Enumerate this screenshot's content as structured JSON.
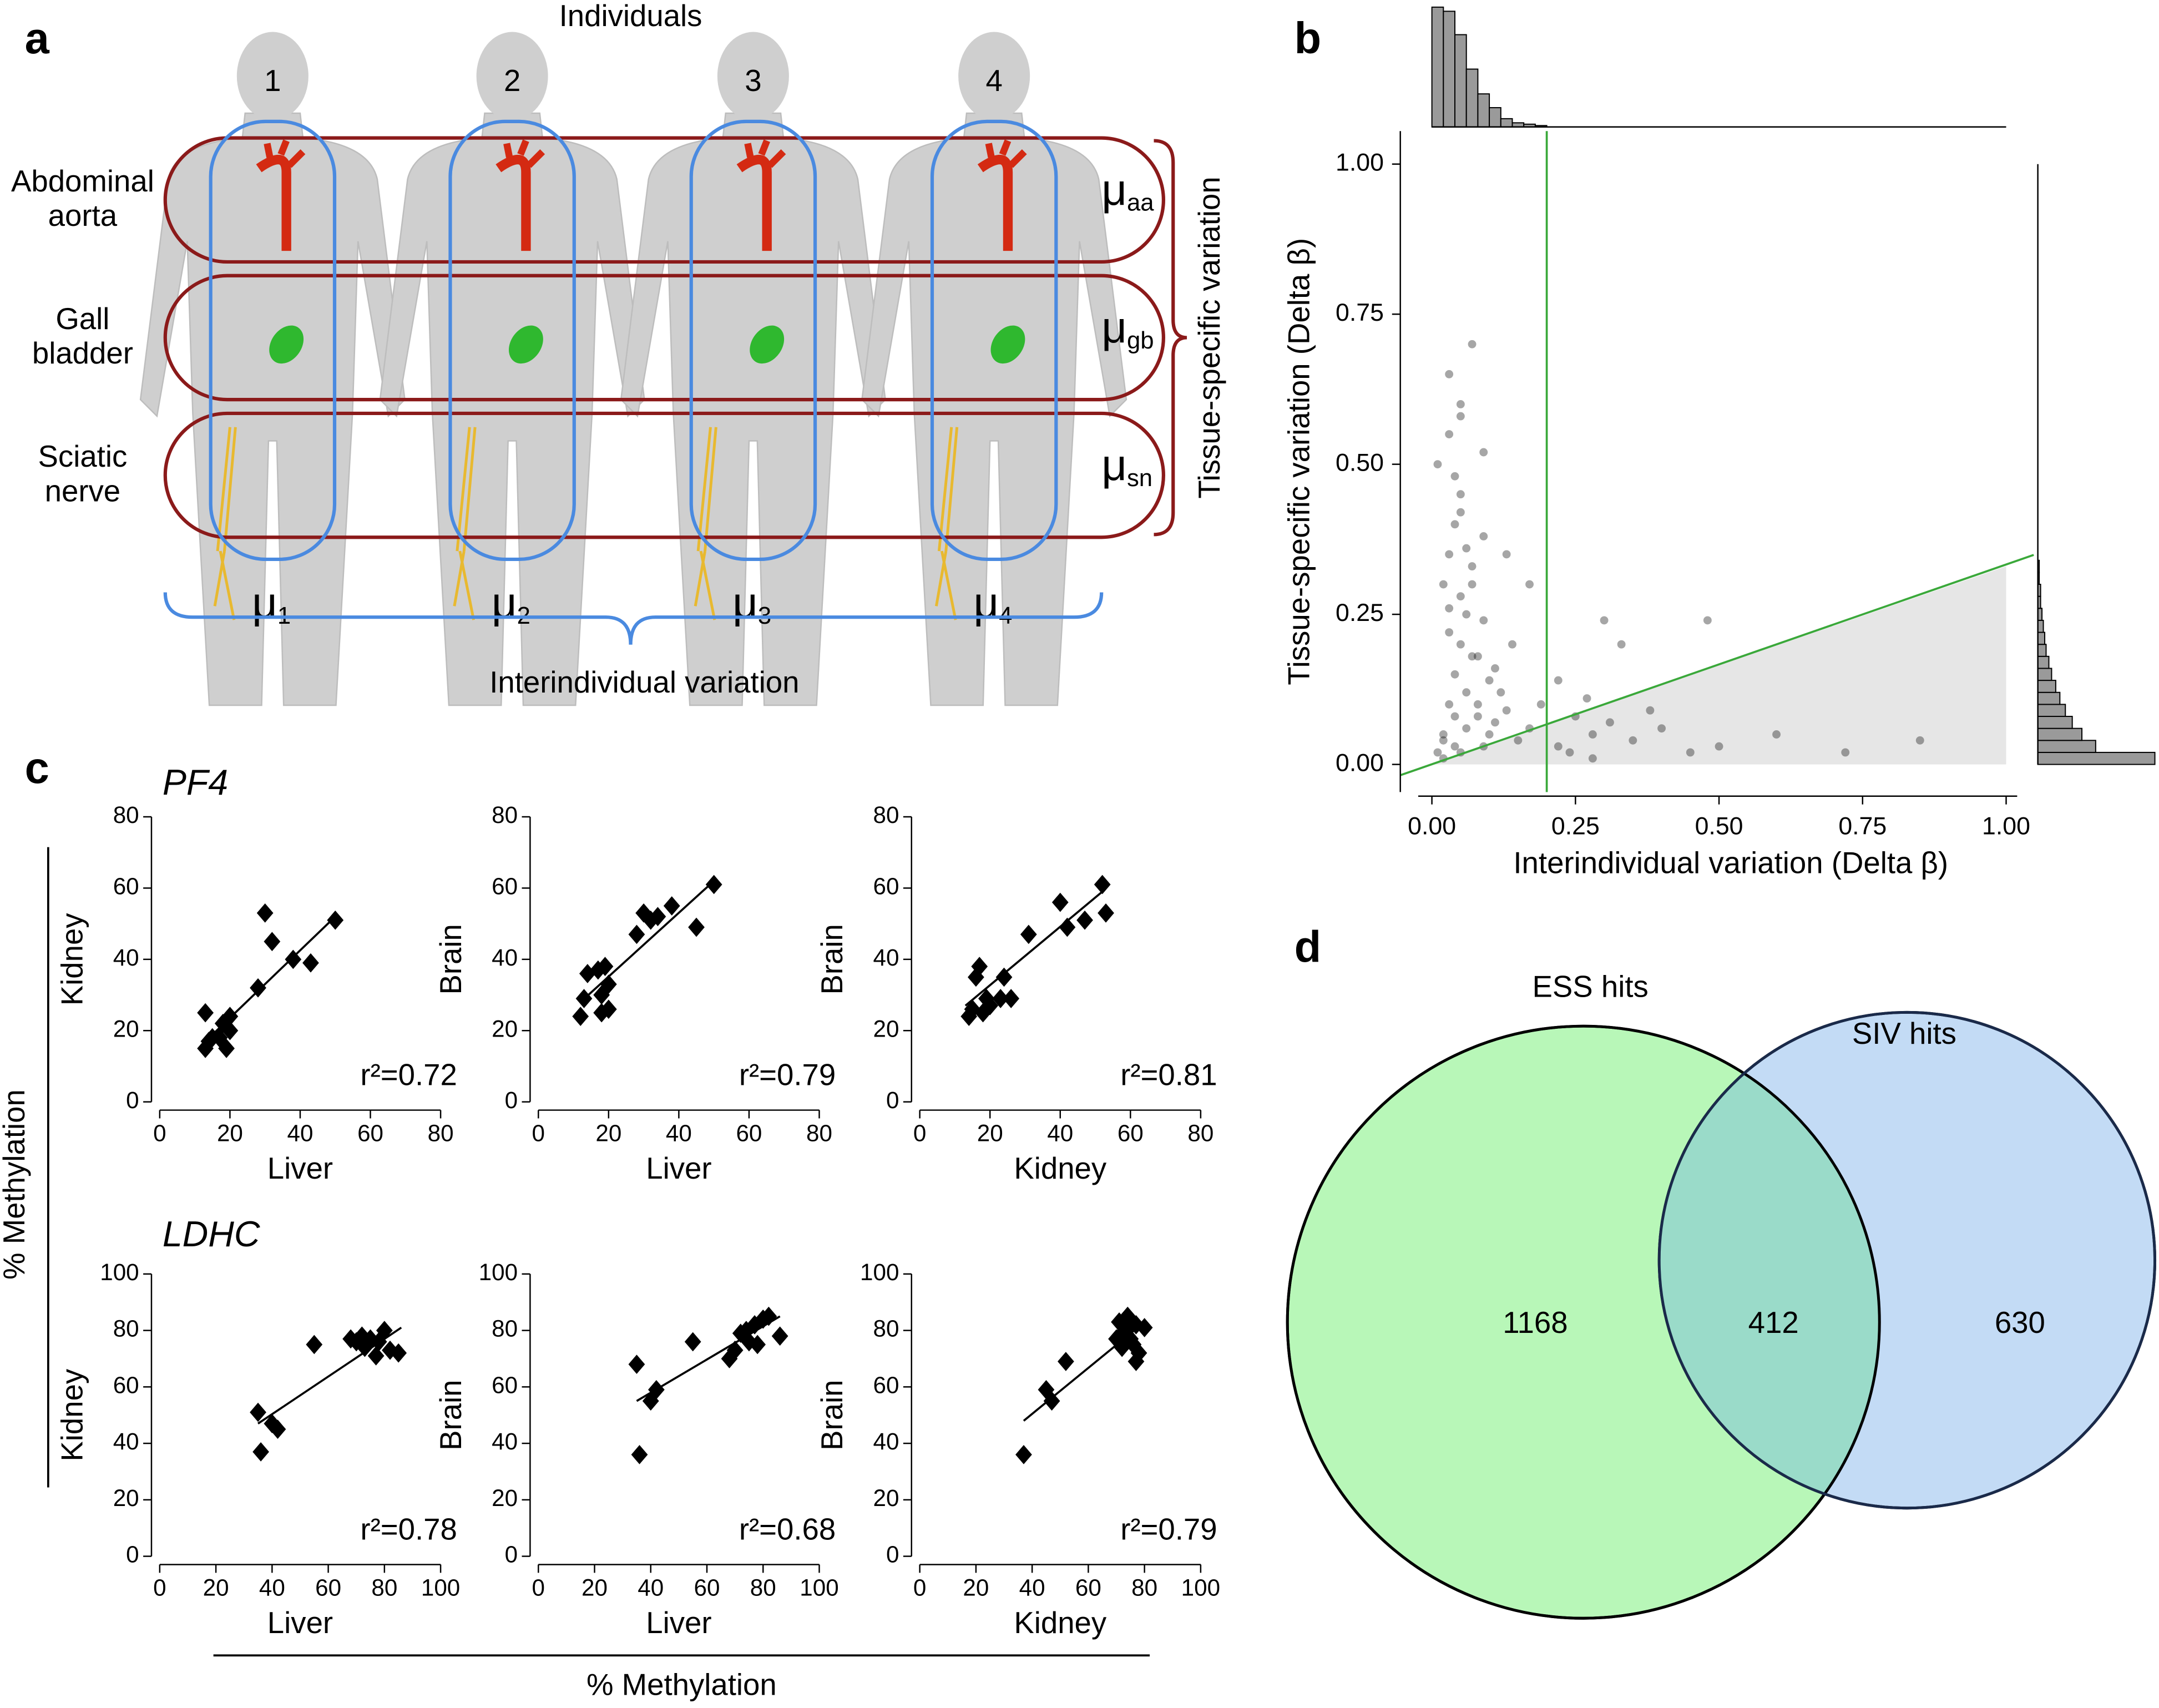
{
  "panel_labels": [
    "a",
    "b",
    "c",
    "d"
  ],
  "diagram": {
    "title": "Individuals",
    "individuals": [
      {
        "number": "1",
        "mu": {
          "symbol": "μ",
          "sub": "1"
        }
      },
      {
        "number": "2",
        "mu": {
          "symbol": "μ",
          "sub": "2"
        }
      },
      {
        "number": "3",
        "mu": {
          "symbol": "μ",
          "sub": "3"
        }
      },
      {
        "number": "4",
        "mu": {
          "symbol": "μ",
          "sub": "4"
        }
      }
    ],
    "tissues": [
      {
        "label": [
          "Abdominal",
          "aorta"
        ],
        "mu": {
          "symbol": "μ",
          "sub": "aa"
        }
      },
      {
        "label": [
          "Gall",
          "bladder"
        ],
        "mu": {
          "symbol": "μ",
          "sub": "gb"
        }
      },
      {
        "label": [
          "Sciatic",
          "nerve"
        ],
        "mu": {
          "symbol": "μ",
          "sub": "sn"
        }
      }
    ],
    "tissue_brace_label": "Tissue-specific variation",
    "individual_brace_label": "Interindividual variation"
  },
  "row_titles": [
    "PF4",
    "LDHC"
  ],
  "shared_labels": {
    "y": "% Methylation",
    "x": "% Methylation"
  },
  "chart_data": [
    {
      "type": "density_scatter",
      "xlabel": "Interindividual variation (Delta β)",
      "ylabel": "Tissue-specific variation (Delta β)",
      "xlim": [
        -0.055,
        1.048
      ],
      "ylim": [
        -0.046,
        1.055
      ],
      "xticks": [
        {
          "value": 0,
          "label": "0.00"
        },
        {
          "value": 0.25,
          "label": "0.25"
        },
        {
          "value": 0.5,
          "label": "0.50"
        },
        {
          "value": 0.75,
          "label": "0.75"
        },
        {
          "value": 1,
          "label": "1.00"
        }
      ],
      "yticks": [
        {
          "value": 0,
          "label": "0.00"
        },
        {
          "value": 0.25,
          "label": "0.25"
        },
        {
          "value": 0.5,
          "label": "0.50"
        },
        {
          "value": 0.75,
          "label": "0.75"
        },
        {
          "value": 1,
          "label": "1.00"
        }
      ],
      "color": "#000000",
      "line_color": "#3aa83a",
      "shade_color": "#e6e6e6",
      "hist_color": "#9a9a9a",
      "x": [
        0.01,
        0.02,
        0.03,
        0.04,
        0.05,
        0.06,
        0.02,
        0.03,
        0.04,
        0.05,
        0.01,
        0.03,
        0.05,
        0.07,
        0.02,
        0.04,
        0.06,
        0.08,
        0.03,
        0.05,
        0.07,
        0.09,
        0.02,
        0.04,
        0.06,
        0.08,
        0.1,
        0.03,
        0.05,
        0.07,
        0.09,
        0.11,
        0.04,
        0.06,
        0.08,
        0.1,
        0.12,
        0.14,
        0.05,
        0.07,
        0.09,
        0.11,
        0.13,
        0.15,
        0.17,
        0.19,
        0.22,
        0.25,
        0.28,
        0.31,
        0.35,
        0.4,
        0.45,
        0.22,
        0.27,
        0.33,
        0.38,
        0.5,
        0.6,
        0.72,
        0.85,
        0.3,
        0.48,
        0.24,
        0.17,
        0.13,
        0.09,
        0.03,
        0.05,
        0.28
      ],
      "values": [
        0.02,
        0.05,
        0.1,
        0.15,
        0.2,
        0.25,
        0.3,
        0.35,
        0.4,
        0.45,
        0.5,
        0.55,
        0.6,
        0.7,
        0.04,
        0.08,
        0.12,
        0.18,
        0.22,
        0.28,
        0.33,
        0.38,
        0.01,
        0.03,
        0.06,
        0.1,
        0.14,
        0.26,
        0.42,
        0.3,
        0.24,
        0.16,
        0.48,
        0.36,
        0.08,
        0.05,
        0.12,
        0.2,
        0.02,
        0.18,
        0.03,
        0.07,
        0.09,
        0.04,
        0.06,
        0.1,
        0.03,
        0.08,
        0.05,
        0.07,
        0.04,
        0.06,
        0.02,
        0.14,
        0.11,
        0.2,
        0.09,
        0.03,
        0.05,
        0.02,
        0.04,
        0.24,
        0.24,
        0.02,
        0.3,
        0.35,
        0.52,
        0.65,
        0.58,
        0.01
      ],
      "vline": {
        "x": 0.2
      },
      "diagonal": {
        "x": [
          -0.055,
          1.048
        ],
        "y": [
          -0.018,
          0.349
        ]
      },
      "shaded_region": {
        "x": [
          0,
          1,
          1
        ],
        "y": [
          0,
          0,
          0.33
        ]
      },
      "histogram_top": {
        "bins": [
          0,
          0.02,
          0.04,
          0.06,
          0.08,
          0.1,
          0.12,
          0.14,
          0.16,
          0.18,
          0.2
        ],
        "counts": [
          87,
          84,
          67,
          42,
          24,
          14,
          6,
          3,
          2,
          1
        ]
      },
      "histogram_right": {
        "bins": [
          0,
          0.02,
          0.04,
          0.06,
          0.08,
          0.1,
          0.12,
          0.14,
          0.16,
          0.18,
          0.2,
          0.22,
          0.24,
          0.26,
          0.28,
          0.3,
          0.32,
          0.34
        ],
        "counts": [
          85,
          42,
          32,
          25,
          20,
          16,
          13,
          10,
          8,
          6,
          5,
          4,
          3,
          2,
          2,
          1,
          1
        ]
      }
    },
    {
      "type": "scatter",
      "xlabel": "Liver",
      "ylabel": "Kidney",
      "annotation": "r²=0.72",
      "xlim": [
        0,
        80
      ],
      "ylim": [
        0,
        80
      ],
      "xticks": [
        0,
        20,
        40,
        60,
        80
      ],
      "yticks": [
        0,
        20,
        40,
        60,
        80
      ],
      "x": [
        13,
        13,
        14,
        15,
        17,
        18,
        19,
        20,
        20,
        28,
        30,
        32,
        38,
        43,
        50
      ],
      "values": [
        25,
        15,
        17,
        18,
        18,
        22,
        15,
        24,
        20,
        32,
        53,
        45,
        40,
        39,
        51
      ],
      "fit": {
        "x": [
          12,
          50
        ],
        "y": [
          16,
          52
        ]
      }
    },
    {
      "type": "scatter",
      "xlabel": "Liver",
      "ylabel": "Brain",
      "annotation": "r²=0.79",
      "xlim": [
        0,
        80
      ],
      "ylim": [
        0,
        80
      ],
      "xticks": [
        0,
        20,
        40,
        60,
        80
      ],
      "yticks": [
        0,
        20,
        40,
        60,
        80
      ],
      "x": [
        12,
        13,
        14,
        17,
        18,
        18,
        19,
        20,
        20,
        28,
        30,
        32,
        34,
        38,
        45,
        50
      ],
      "values": [
        24,
        29,
        36,
        37,
        25,
        30,
        38,
        26,
        33,
        47,
        53,
        51,
        52,
        55,
        49,
        61
      ],
      "fit": {
        "x": [
          12,
          50
        ],
        "y": [
          28,
          62
        ]
      }
    },
    {
      "type": "scatter",
      "xlabel": "Kidney",
      "ylabel": "Brain",
      "annotation": "r²=0.81",
      "xlim": [
        0,
        80
      ],
      "ylim": [
        0,
        80
      ],
      "xticks": [
        0,
        20,
        40,
        60,
        80
      ],
      "yticks": [
        0,
        20,
        40,
        60,
        80
      ],
      "x": [
        14,
        15,
        16,
        17,
        18,
        19,
        20,
        23,
        24,
        26,
        31,
        40,
        42,
        47,
        52,
        53
      ],
      "values": [
        24,
        26,
        35,
        38,
        25,
        29,
        27,
        29,
        35,
        29,
        47,
        56,
        49,
        51,
        61,
        53
      ],
      "fit": {
        "x": [
          13,
          52
        ],
        "y": [
          27,
          59
        ]
      }
    },
    {
      "type": "scatter",
      "xlabel": "Liver",
      "ylabel": "Kidney",
      "annotation": "r²=0.78",
      "xlim": [
        0,
        100
      ],
      "ylim": [
        0,
        100
      ],
      "xticks": [
        0,
        20,
        40,
        60,
        80,
        100
      ],
      "yticks": [
        0,
        20,
        40,
        60,
        80,
        100
      ],
      "x": [
        35,
        36,
        40,
        42,
        55,
        68,
        70,
        72,
        73,
        75,
        77,
        78,
        80,
        82,
        85
      ],
      "values": [
        51,
        37,
        47,
        45,
        75,
        77,
        76,
        78,
        74,
        77,
        71,
        76,
        80,
        73,
        72
      ],
      "fit": {
        "x": [
          35,
          86
        ],
        "y": [
          47,
          81
        ]
      }
    },
    {
      "type": "scatter",
      "xlabel": "Liver",
      "ylabel": "Brain",
      "annotation": "r²=0.68",
      "xlim": [
        0,
        100
      ],
      "ylim": [
        0,
        100
      ],
      "xticks": [
        0,
        20,
        40,
        60,
        80,
        100
      ],
      "yticks": [
        0,
        20,
        40,
        60,
        80,
        100
      ],
      "x": [
        35,
        36,
        40,
        42,
        55,
        68,
        70,
        72,
        74,
        75,
        77,
        78,
        80,
        82,
        86
      ],
      "values": [
        68,
        36,
        55,
        59,
        76,
        70,
        73,
        79,
        80,
        76,
        82,
        75,
        84,
        85,
        78
      ],
      "fit": {
        "x": [
          35,
          86
        ],
        "y": [
          55,
          85
        ]
      }
    },
    {
      "type": "scatter",
      "xlabel": "Kidney",
      "ylabel": "Brain",
      "annotation": "r²=0.79",
      "xlim": [
        0,
        100
      ],
      "ylim": [
        0,
        100
      ],
      "xticks": [
        0,
        20,
        40,
        60,
        80,
        100
      ],
      "yticks": [
        0,
        20,
        40,
        60,
        80,
        100
      ],
      "x": [
        37,
        45,
        47,
        52,
        70,
        71,
        72,
        73,
        74,
        75,
        76,
        77,
        77,
        78,
        80
      ],
      "values": [
        36,
        59,
        55,
        69,
        77,
        83,
        74,
        80,
        85,
        77,
        75,
        82,
        69,
        72,
        81
      ],
      "fit": {
        "x": [
          37,
          80
        ],
        "y": [
          48,
          83
        ]
      }
    },
    {
      "type": "venn",
      "sets": [
        {
          "name": "ESS hits",
          "color": "#b8f7b8"
        },
        {
          "name": "SIV hits",
          "color": "#c3dbf5"
        }
      ],
      "overlap_color": "#9adbc9",
      "values": [
        1168,
        412,
        630
      ]
    }
  ]
}
